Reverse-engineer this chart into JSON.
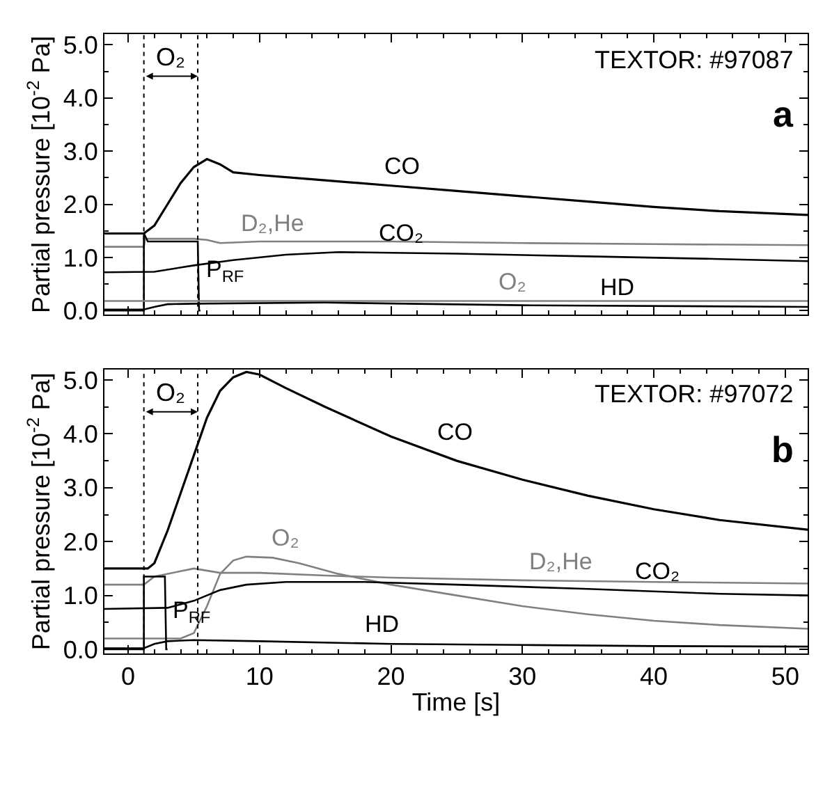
{
  "chart_data": [
    {
      "type": "line",
      "ylabel": "Partial pressure [10$^{-2}$ Pa]",
      "tick_labels": "y",
      "xlim": [
        -1.8,
        51.7
      ],
      "ylim": [
        -0.08,
        5.2
      ],
      "xticks": [
        0,
        {
          "value": 2,
          "label": null
        },
        {
          "value": 4,
          "label": null
        },
        {
          "value": 6,
          "label": null
        },
        {
          "value": 8,
          "label": null
        },
        10,
        {
          "value": 12,
          "label": null
        },
        {
          "value": 14,
          "label": null
        },
        {
          "value": 16,
          "label": null
        },
        {
          "value": 18,
          "label": null
        },
        20,
        {
          "value": 22,
          "label": null
        },
        {
          "value": 24,
          "label": null
        },
        {
          "value": 26,
          "label": null
        },
        {
          "value": 28,
          "label": null
        },
        30,
        {
          "value": 32,
          "label": null
        },
        {
          "value": 34,
          "label": null
        },
        {
          "value": 36,
          "label": null
        },
        {
          "value": 38,
          "label": null
        },
        40,
        {
          "value": 42,
          "label": null
        },
        {
          "value": 44,
          "label": null
        },
        {
          "value": 46,
          "label": null
        },
        {
          "value": 48,
          "label": null
        },
        50
      ],
      "yticks": [
        {
          "value": 0,
          "label": "0.0"
        },
        {
          "value": 0.5,
          "label": null
        },
        {
          "value": 1,
          "label": "1.0"
        },
        {
          "value": 1.5,
          "label": null
        },
        {
          "value": 2,
          "label": "2.0"
        },
        {
          "value": 2.5,
          "label": null
        },
        {
          "value": 3,
          "label": "3.0"
        },
        {
          "value": 3.5,
          "label": null
        },
        {
          "value": 4,
          "label": "4.0"
        },
        {
          "value": 4.5,
          "label": null
        },
        {
          "value": 5,
          "label": "5.0"
        }
      ],
      "series": [
        {
          "name": "CO",
          "color": "#000000",
          "x": [
            -1.8,
            1.2,
            2,
            3,
            4,
            5,
            6,
            7,
            8,
            10,
            15,
            20,
            25,
            30,
            35,
            40,
            45,
            51.7
          ],
          "values": [
            1.45,
            1.45,
            1.6,
            2.0,
            2.4,
            2.7,
            2.85,
            2.75,
            2.6,
            2.55,
            2.45,
            2.35,
            2.25,
            2.15,
            2.05,
            1.95,
            1.87,
            1.8
          ]
        },
        {
          "name": "D₂,He",
          "color": "#808080",
          "x": [
            -1.8,
            1.2,
            1.3,
            5,
            6,
            7,
            8,
            10,
            20,
            30,
            40,
            51.7
          ],
          "values": [
            1.2,
            1.2,
            1.35,
            1.35,
            1.33,
            1.27,
            1.28,
            1.3,
            1.3,
            1.27,
            1.25,
            1.23
          ]
        },
        {
          "name": "CO₂",
          "color": "#000000",
          "x": [
            -1.8,
            2,
            5,
            8,
            12,
            16,
            25,
            35,
            45,
            51.7
          ],
          "values": [
            0.72,
            0.73,
            0.85,
            0.95,
            1.05,
            1.1,
            1.07,
            1.02,
            0.97,
            0.93
          ]
        },
        {
          "name": "P$_{RF}$",
          "color": "#000000",
          "x": [
            -1.8,
            1.2,
            1.2,
            1.5,
            5.3,
            5.4,
            5.5
          ],
          "values": [
            0,
            0,
            1.45,
            1.3,
            1.3,
            0,
            0
          ]
        },
        {
          "name": "O₂",
          "color": "#808080",
          "x": [
            -1.8,
            10,
            20,
            30,
            40,
            51.7
          ],
          "values": [
            0.18,
            0.18,
            0.18,
            0.18,
            0.18,
            0.18
          ]
        },
        {
          "name": "HD",
          "color": "#000000",
          "x": [
            -1.8,
            1.2,
            2,
            3,
            5,
            15,
            30,
            51.7
          ],
          "values": [
            0.02,
            0.02,
            0.07,
            0.12,
            0.13,
            0.15,
            0.1,
            0.07
          ]
        }
      ],
      "ref_lines": [
        {
          "axis": "x",
          "value": 1.2,
          "line_style": "dotted"
        },
        {
          "axis": "x",
          "value": 5.3,
          "line_style": "dotted"
        }
      ],
      "annotations": [
        "TEXTOR: #97087",
        "a",
        "O₂"
      ]
    },
    {
      "type": "line",
      "ylabel": "Partial pressure [10$^{-2}$ Pa]",
      "xlabel": "Time [s]",
      "xlim": [
        -1.8,
        51.7
      ],
      "ylim": [
        -0.08,
        5.2
      ],
      "xticks": [
        0,
        {
          "value": 2,
          "label": null
        },
        {
          "value": 4,
          "label": null
        },
        {
          "value": 6,
          "label": null
        },
        {
          "value": 8,
          "label": null
        },
        10,
        {
          "value": 12,
          "label": null
        },
        {
          "value": 14,
          "label": null
        },
        {
          "value": 16,
          "label": null
        },
        {
          "value": 18,
          "label": null
        },
        20,
        {
          "value": 22,
          "label": null
        },
        {
          "value": 24,
          "label": null
        },
        {
          "value": 26,
          "label": null
        },
        {
          "value": 28,
          "label": null
        },
        30,
        {
          "value": 32,
          "label": null
        },
        {
          "value": 34,
          "label": null
        },
        {
          "value": 36,
          "label": null
        },
        {
          "value": 38,
          "label": null
        },
        40,
        {
          "value": 42,
          "label": null
        },
        {
          "value": 44,
          "label": null
        },
        {
          "value": 46,
          "label": null
        },
        {
          "value": 48,
          "label": null
        },
        50
      ],
      "yticks": [
        {
          "value": 0,
          "label": "0.0"
        },
        {
          "value": 0.5,
          "label": null
        },
        {
          "value": 1,
          "label": "1.0"
        },
        {
          "value": 1.5,
          "label": null
        },
        {
          "value": 2,
          "label": "2.0"
        },
        {
          "value": 2.5,
          "label": null
        },
        {
          "value": 3,
          "label": "3.0"
        },
        {
          "value": 3.5,
          "label": null
        },
        {
          "value": 4,
          "label": "4.0"
        },
        {
          "value": 4.5,
          "label": null
        },
        {
          "value": 5,
          "label": "5.0"
        }
      ],
      "series": [
        {
          "name": "CO",
          "color": "#000000",
          "x": [
            -1.8,
            1.5,
            2,
            3,
            4,
            5,
            6,
            7,
            8,
            9,
            10,
            12,
            15,
            20,
            25,
            30,
            35,
            40,
            45,
            51.7
          ],
          "values": [
            1.5,
            1.5,
            1.6,
            2.2,
            2.9,
            3.6,
            4.3,
            4.8,
            5.05,
            5.15,
            5.1,
            4.85,
            4.5,
            3.95,
            3.5,
            3.15,
            2.85,
            2.6,
            2.4,
            2.22
          ]
        },
        {
          "name": "O₂",
          "color": "#808080",
          "x": [
            -1.8,
            4,
            5,
            6,
            7,
            8,
            9,
            11,
            13,
            16,
            20,
            25,
            30,
            35,
            40,
            45,
            51.7
          ],
          "values": [
            0.2,
            0.2,
            0.3,
            0.8,
            1.4,
            1.65,
            1.72,
            1.7,
            1.6,
            1.4,
            1.2,
            1.0,
            0.8,
            0.65,
            0.53,
            0.45,
            0.38
          ]
        },
        {
          "name": "D₂,He",
          "color": "#808080",
          "x": [
            -1.8,
            1.2,
            2,
            4,
            5,
            7,
            10,
            15,
            20,
            30,
            40,
            51.7
          ],
          "values": [
            1.2,
            1.2,
            1.35,
            1.45,
            1.5,
            1.42,
            1.42,
            1.37,
            1.33,
            1.28,
            1.25,
            1.22
          ]
        },
        {
          "name": "CO₂",
          "color": "#000000",
          "x": [
            -1.8,
            3,
            5,
            7,
            9,
            12,
            18,
            25,
            35,
            45,
            51.7
          ],
          "values": [
            0.75,
            0.77,
            0.9,
            1.1,
            1.2,
            1.25,
            1.25,
            1.2,
            1.12,
            1.03,
            1.0
          ]
        },
        {
          "name": "P$_{RF}$",
          "color": "#000000",
          "x": [
            -1.8,
            1.2,
            1.2,
            2.8,
            2.9,
            3.0
          ],
          "values": [
            0,
            0,
            1.35,
            1.35,
            0,
            0
          ]
        },
        {
          "name": "HD",
          "color": "#000000",
          "x": [
            -1.8,
            1.2,
            2,
            3,
            5,
            10,
            20,
            30,
            40,
            51.7
          ],
          "values": [
            0.02,
            0.02,
            0.1,
            0.15,
            0.17,
            0.15,
            0.1,
            0.08,
            0.06,
            0.05
          ]
        }
      ],
      "ref_lines": [
        {
          "axis": "x",
          "value": 1.2,
          "line_style": "dotted"
        },
        {
          "axis": "x",
          "value": 5.3,
          "line_style": "dotted"
        }
      ],
      "annotations": [
        "TEXTOR: #97072",
        "b",
        "O₂"
      ]
    }
  ]
}
